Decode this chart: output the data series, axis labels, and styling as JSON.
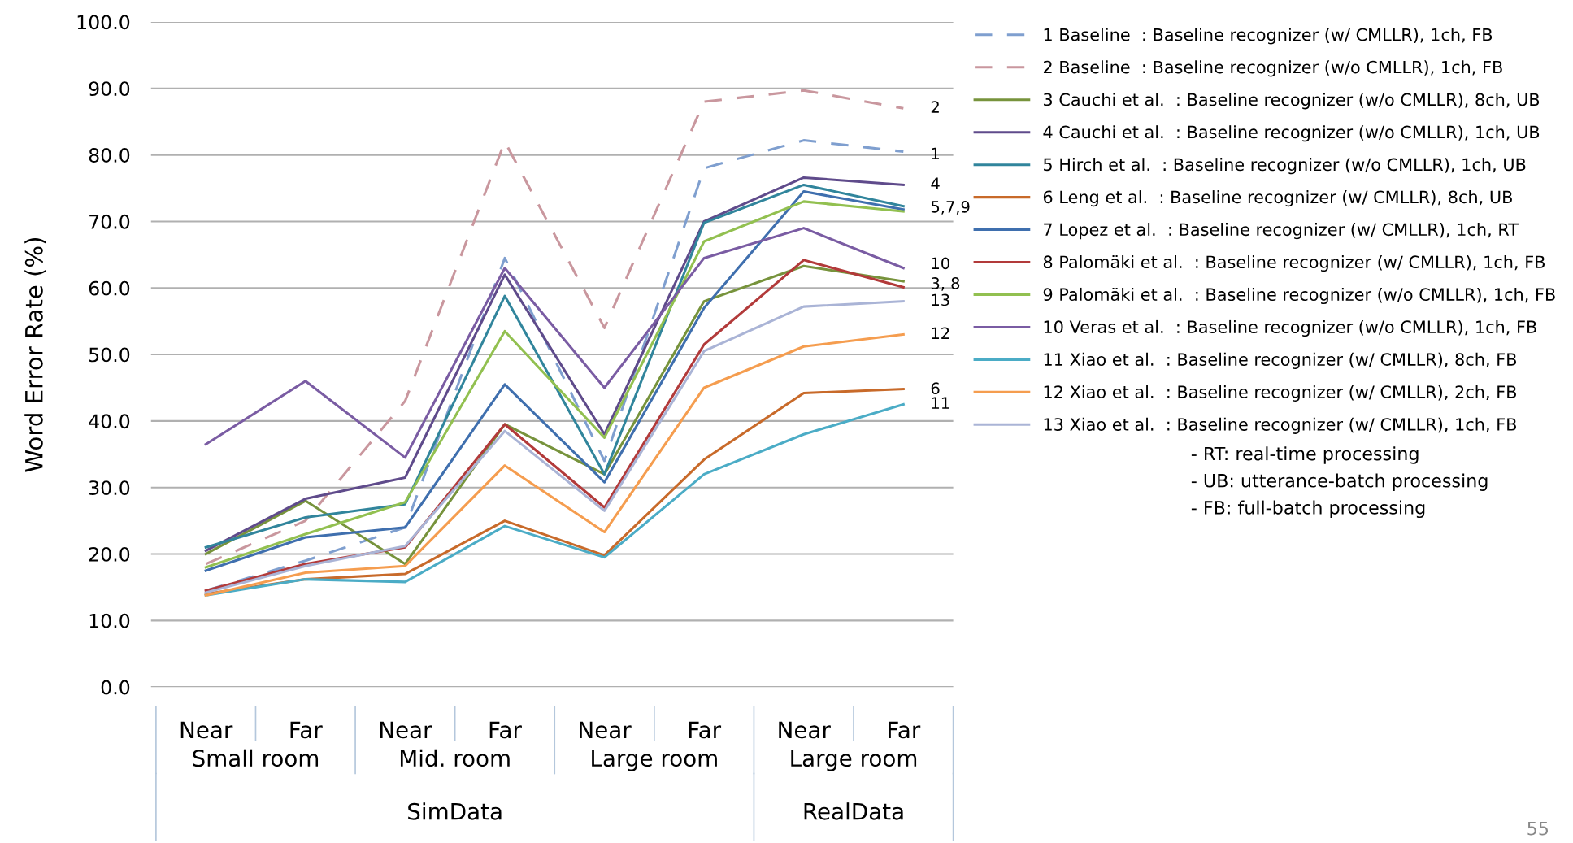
{
  "chart_data": {
    "type": "line",
    "ylabel": "Word Error Rate (%)",
    "categories": [
      "Near",
      "Far",
      "Near",
      "Far",
      "Near",
      "Far",
      "Near",
      "Far"
    ],
    "ylim": [
      0,
      100
    ],
    "yticks": [
      {
        "value": 0,
        "label": "0.0"
      },
      {
        "value": 10,
        "label": "10.0"
      },
      {
        "value": 20,
        "label": "20.0"
      },
      {
        "value": 30,
        "label": "30.0"
      },
      {
        "value": 40,
        "label": "40.0"
      },
      {
        "value": 50,
        "label": "50.0"
      },
      {
        "value": 60,
        "label": "60.0"
      },
      {
        "value": 70,
        "label": "70.0"
      },
      {
        "value": 80,
        "label": "80.0"
      },
      {
        "value": 90,
        "label": "90.0"
      },
      {
        "value": 100,
        "label": "100.0"
      }
    ],
    "grid": "y",
    "legend": "right",
    "marker": "none",
    "series": [
      {
        "name": "1 Baseline  : Baseline recognizer (w/ CMLLR), 1ch, FB",
        "color": "#7f9fcf",
        "line_style": "dashed",
        "values": [
          14.5,
          19,
          24,
          64.5,
          34,
          78,
          82.2,
          80.5
        ]
      },
      {
        "name": "2 Baseline  : Baseline recognizer (w/o CMLLR), 1ch, FB",
        "color": "#c9979e",
        "line_style": "dashed",
        "values": [
          18.5,
          25,
          43,
          82,
          54,
          88,
          89.7,
          87
        ]
      },
      {
        "name": "3 Cauchi et al.  : Baseline recognizer (w/o CMLLR), 8ch, UB",
        "color": "#77933c",
        "values": [
          20,
          28,
          18.5,
          39.5,
          32,
          58,
          63.3,
          61
        ]
      },
      {
        "name": "4 Cauchi et al.  : Baseline recognizer (w/o CMLLR), 1ch, UB",
        "color": "#5f4b8b",
        "values": [
          20.5,
          28.3,
          31.5,
          62,
          38,
          70,
          76.6,
          75.5
        ]
      },
      {
        "name": "5 Hirch et al.  : Baseline recognizer (w/o CMLLR), 1ch, UB",
        "color": "#31859c",
        "values": [
          21,
          25.5,
          27.5,
          58.8,
          32,
          69.8,
          75.5,
          72.3
        ]
      },
      {
        "name": "6 Leng et al.  : Baseline recognizer (w/ CMLLR), 8ch, UB",
        "color": "#c86a2a",
        "values": [
          14,
          16.2,
          17,
          25,
          19.8,
          34.2,
          44.2,
          44.8
        ]
      },
      {
        "name": "7 Lopez et al.  : Baseline recognizer (w/ CMLLR), 1ch, RT",
        "color": "#3f6fae",
        "values": [
          17.5,
          22.5,
          24,
          45.5,
          30.8,
          57,
          74.5,
          71.8
        ]
      },
      {
        "name": "8 Palomäki et al.  : Baseline recognizer (w/ CMLLR), 1ch, FB",
        "color": "#b23a3a",
        "values": [
          14.5,
          18.5,
          21,
          39.5,
          27,
          51.5,
          64.2,
          60.1
        ]
      },
      {
        "name": "9 Palomäki et al.  : Baseline recognizer (w/o CMLLR), 1ch, FB",
        "color": "#92c050",
        "values": [
          18,
          23,
          27.8,
          53.5,
          37.5,
          67,
          73,
          71.5
        ]
      },
      {
        "name": "10 Veras et al.  : Baseline recognizer (w/o CMLLR), 1ch, FB",
        "color": "#7a5ca3",
        "values": [
          36.5,
          46,
          34.5,
          63,
          45,
          64.5,
          69,
          63
        ]
      },
      {
        "name": "11 Xiao et al.  : Baseline recognizer (w/ CMLLR), 8ch, FB",
        "color": "#4bacc6",
        "values": [
          13.8,
          16.2,
          15.8,
          24.2,
          19.5,
          32,
          38,
          42.5
        ]
      },
      {
        "name": "12 Xiao et al.  : Baseline recognizer (w/ CMLLR), 2ch, FB",
        "color": "#f59d4f",
        "values": [
          13.8,
          17.2,
          18.2,
          33.3,
          23.3,
          45,
          51.2,
          53
        ]
      },
      {
        "name": "13 Xiao et al.  : Baseline recognizer (w/ CMLLR), 1ch, FB",
        "color": "#aab4d6",
        "values": [
          14.2,
          18.2,
          21.2,
          38.5,
          26.5,
          50.5,
          57.2,
          58
        ]
      }
    ],
    "annotations": [
      "Small room",
      "Mid. room",
      "Large room",
      "Large room",
      "SimData",
      "RealData",
      "- RT: real-time processing",
      "- UB: utterance-batch processing",
      "- FB: full-batch processing",
      "55",
      "2",
      "1",
      "4",
      "5,7,9",
      "10",
      "3, 8",
      "13",
      "12",
      "6",
      "11"
    ]
  }
}
